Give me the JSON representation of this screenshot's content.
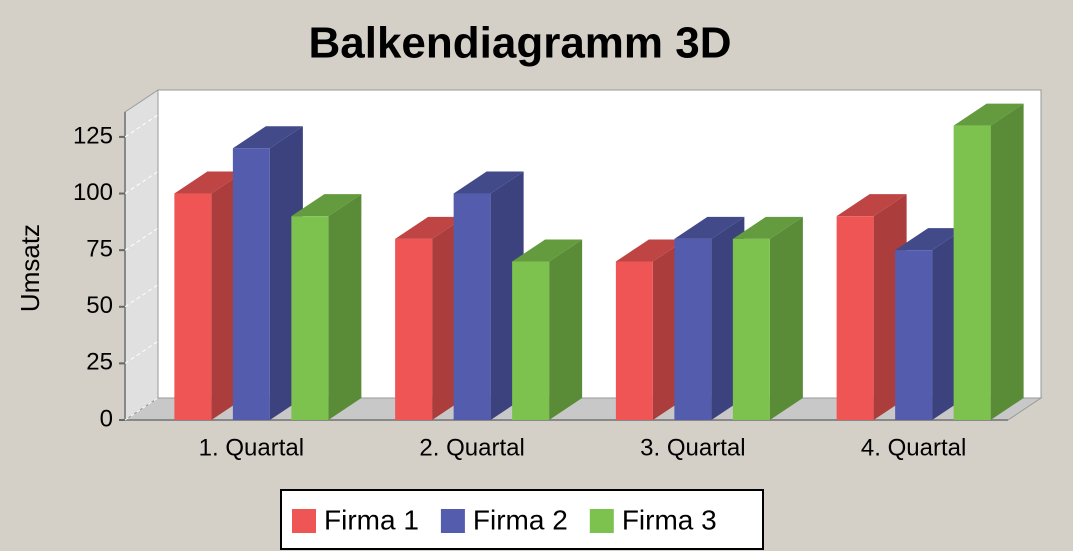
{
  "chart_data": {
    "type": "bar3d",
    "title": "Balkendiagramm 3D",
    "y_label": "Umsatz",
    "categories": [
      "1. Quartal",
      "2. Quartal",
      "3. Quartal",
      "4. Quartal"
    ],
    "series": [
      {
        "name": "Firma 1",
        "color": "#ef5555",
        "values": [
          100,
          80,
          70,
          90
        ]
      },
      {
        "name": "Firma 2",
        "color": "#535cad",
        "values": [
          120,
          100,
          80,
          75
        ]
      },
      {
        "name": "Firma 3",
        "color": "#7dc24e",
        "values": [
          90,
          70,
          80,
          130
        ]
      }
    ],
    "ylim": [
      0,
      136
    ],
    "yticks": [
      0,
      25,
      50,
      75,
      100,
      125
    ],
    "grid": true,
    "legend": "bottom"
  }
}
